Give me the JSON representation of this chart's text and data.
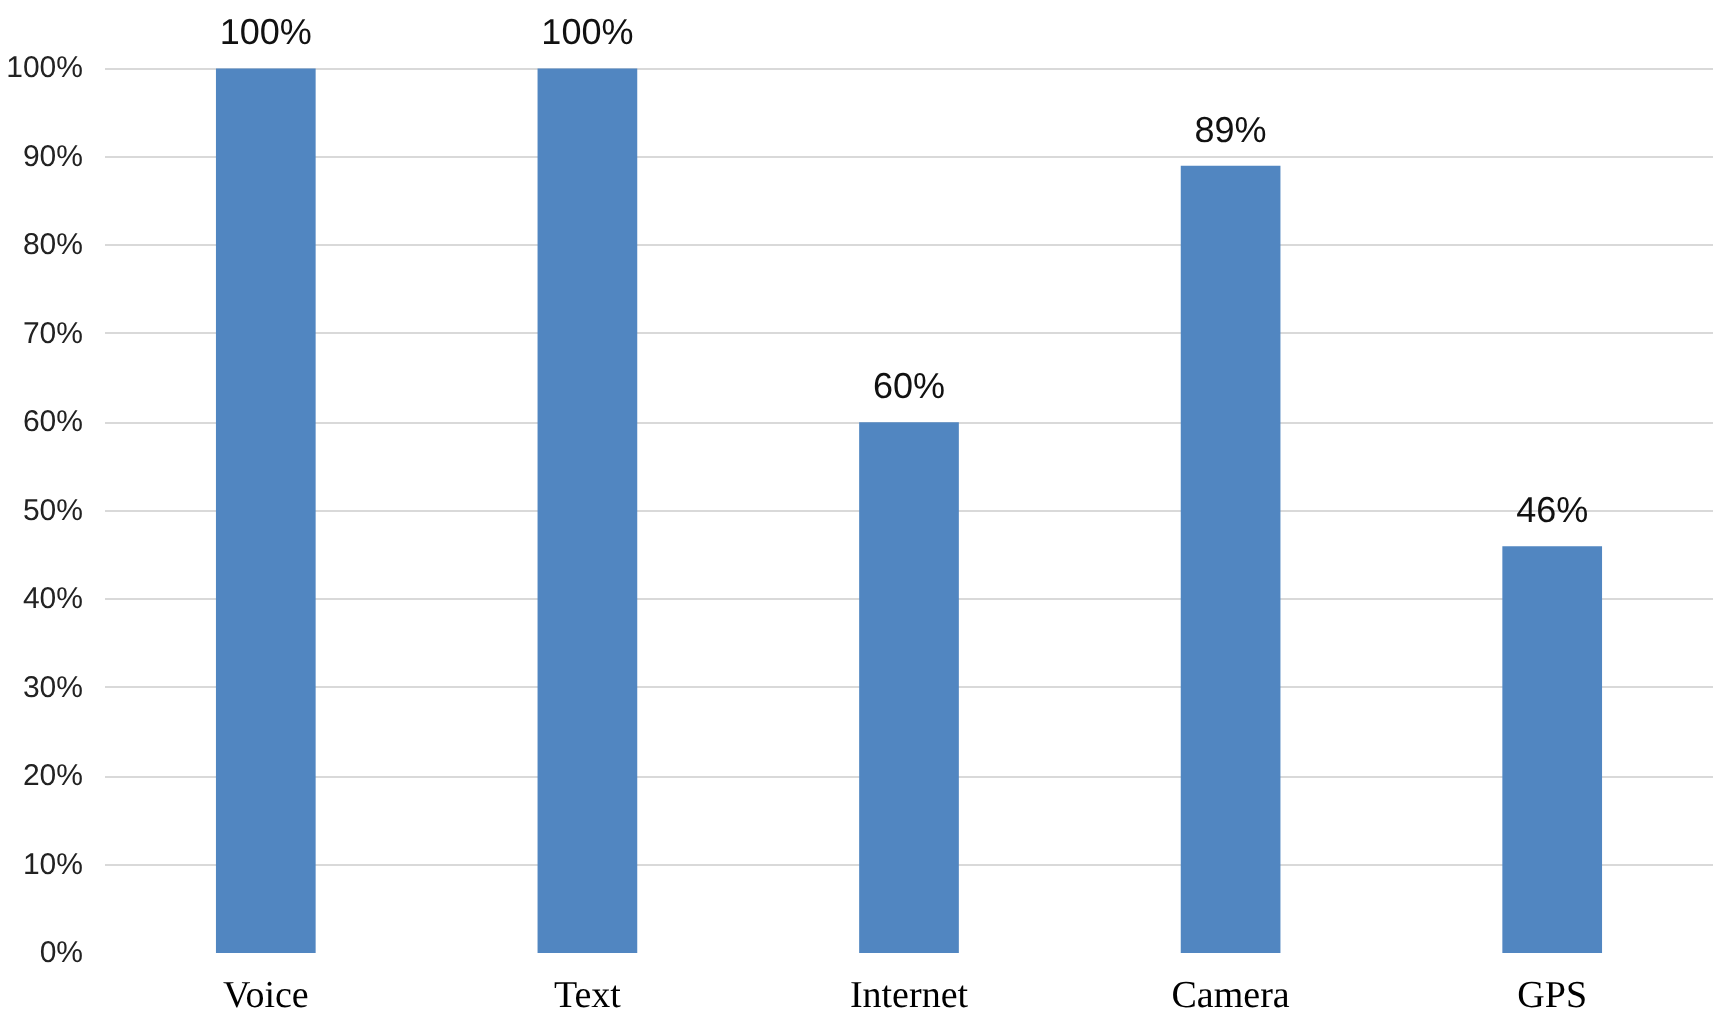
{
  "chart_data": {
    "type": "bar",
    "categories": [
      "Voice",
      "Text",
      "Internet",
      "Camera",
      "GPS"
    ],
    "values": [
      100,
      100,
      60,
      89,
      46
    ],
    "color": "#5186c1",
    "value_labels": [
      "100%",
      "100%",
      "60%",
      "89%",
      "46%"
    ],
    "ylim": [
      0,
      100
    ],
    "yticks": [
      {
        "value": 0,
        "label": "0%"
      },
      {
        "value": 10,
        "label": "10%"
      },
      {
        "value": 20,
        "label": "20%"
      },
      {
        "value": 30,
        "label": "30%"
      },
      {
        "value": 40,
        "label": "40%"
      },
      {
        "value": 50,
        "label": "50%"
      },
      {
        "value": 60,
        "label": "60%"
      },
      {
        "value": 70,
        "label": "70%"
      },
      {
        "value": 80,
        "label": "80%"
      },
      {
        "value": 90,
        "label": "90%"
      },
      {
        "value": 100,
        "label": "100%"
      }
    ],
    "grid": "y"
  }
}
